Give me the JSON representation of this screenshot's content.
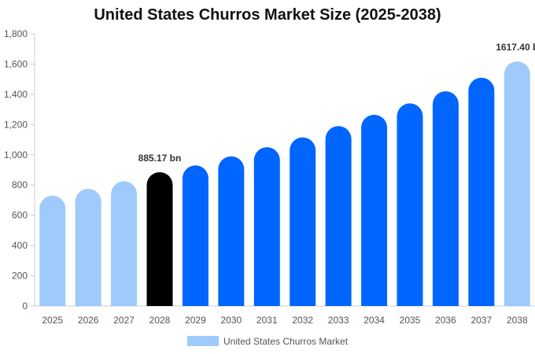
{
  "chart_data": {
    "type": "bar",
    "title": "United States Churros Market Size (2025-2038)",
    "xlabel": "",
    "ylabel": "",
    "categories": [
      "2025",
      "2026",
      "2027",
      "2028",
      "2029",
      "2030",
      "2031",
      "2032",
      "2033",
      "2034",
      "2035",
      "2036",
      "2037",
      "2038"
    ],
    "series": [
      {
        "name": "United States Churros Market",
        "values": [
          730,
          775,
          825,
          885.17,
          930,
          990,
          1050,
          1115,
          1190,
          1265,
          1340,
          1420,
          1510,
          1617.4
        ]
      }
    ],
    "bar_colors": [
      "#9ecbfb",
      "#9ecbfb",
      "#9ecbfb",
      "#000000",
      "#0066ff",
      "#0066ff",
      "#0066ff",
      "#0066ff",
      "#0066ff",
      "#0066ff",
      "#0066ff",
      "#0066ff",
      "#0066ff",
      "#9ecbfb"
    ],
    "data_labels": [
      {
        "index": 3,
        "text": "885.17 bn"
      },
      {
        "index": 13,
        "text": "1617.40 b"
      }
    ],
    "yticks": [
      "0",
      "200",
      "400",
      "600",
      "800",
      "1,000",
      "1,200",
      "1,400",
      "1,600",
      "1,800"
    ],
    "ylim": [
      0,
      1800
    ],
    "grid": false,
    "legend_position": "bottom",
    "legend_color": "#9ecbfb",
    "axis_color": "#cccccc"
  }
}
